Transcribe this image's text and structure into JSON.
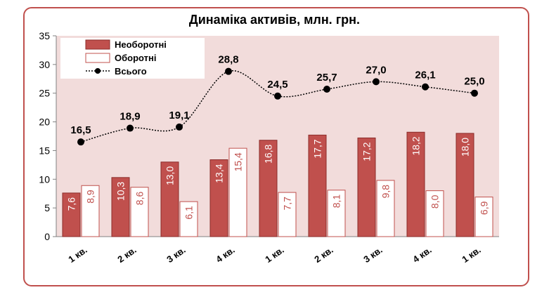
{
  "chart_data": {
    "type": "bar",
    "title": "Динаміка активів, млн. грн.",
    "categories": [
      "1 кв.",
      "2 кв.",
      "3 кв.",
      "4 кв.",
      "1 кв.",
      "2 кв.",
      "3 кв.",
      "4 кв.",
      "1 кв."
    ],
    "series": [
      {
        "name": "Необоротні",
        "type": "bar",
        "color": "#c0504d",
        "values": [
          7.6,
          10.3,
          13.0,
          13.4,
          16.8,
          17.7,
          17.2,
          18.2,
          18.0
        ],
        "labels": [
          "7,6",
          "10,3",
          "13,0",
          "13,4",
          "16,8",
          "17,7",
          "17,2",
          "18,2",
          "18,0"
        ]
      },
      {
        "name": "Оборотні",
        "type": "bar",
        "color": "#ffffff",
        "values": [
          8.9,
          8.6,
          6.1,
          15.4,
          7.7,
          8.1,
          9.8,
          8.0,
          6.9
        ],
        "labels": [
          "8,9",
          "8,6",
          "6,1",
          "15,4",
          "7,7",
          "8,1",
          "9,8",
          "8,0",
          "6,9"
        ]
      },
      {
        "name": "Всього",
        "type": "line",
        "color": "#000000",
        "values": [
          16.5,
          18.9,
          19.1,
          28.8,
          24.5,
          25.7,
          27.0,
          26.1,
          25.0
        ],
        "labels": [
          "16,5",
          "18,9",
          "19,1",
          "28,8",
          "24,5",
          "25,7",
          "27,0",
          "26,1",
          "25,0"
        ]
      }
    ],
    "ylim": [
      0,
      35
    ],
    "yticks": [
      0,
      5,
      10,
      15,
      20,
      25,
      30,
      35
    ],
    "grid": false,
    "legend": "top-left",
    "plot_background": "#f2dcdb"
  }
}
